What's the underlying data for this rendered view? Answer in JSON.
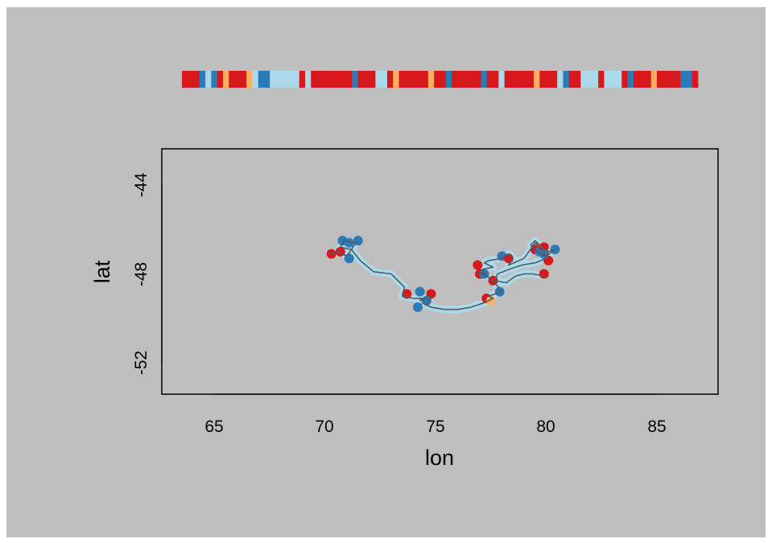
{
  "chart_data": {
    "type": "scatter",
    "title": "",
    "xlabel": "lon",
    "ylabel": "lat",
    "xlim": [
      62.6,
      87.8
    ],
    "ylim": [
      -53.3,
      -42.3
    ],
    "grid": false,
    "legend": "none",
    "x_ticks": [
      "65",
      "70",
      "75",
      "80",
      "85"
    ],
    "y_ticks": [
      "-44",
      "-48",
      "-52"
    ],
    "colors": {
      "background": "#bebebe",
      "panel": "#bebebe",
      "track_line": "#555a60",
      "state_light_blue": "#abd9e9",
      "state_blue": "#2c7bb6",
      "state_orange": "#fdae61",
      "state_red": "#d7191c"
    },
    "track": {
      "lon": [
        70.2,
        70.6,
        71.0,
        71.4,
        70.9,
        70.7,
        71.2,
        71.6,
        72.2,
        73.0,
        73.6,
        73.5,
        74.0,
        74.4,
        74.3,
        74.8,
        74.6,
        74.4,
        74.8,
        75.4,
        76.0,
        76.6,
        77.2,
        77.6,
        77.4,
        78.0,
        77.6,
        77.2,
        76.9,
        77.3,
        77.1,
        77.6,
        77.2,
        77.4,
        78.0,
        78.3,
        78.5,
        78.3,
        79.0,
        79.5,
        79.8,
        80.1,
        80.4,
        80.0,
        79.6,
        79.3,
        79.5,
        79.8,
        80.0,
        79.5,
        78.9,
        78.3,
        77.8,
        77.7,
        78.2,
        78.6,
        79.0,
        79.4,
        79.9
      ],
      "lat": [
        -47.1,
        -47.0,
        -47.2,
        -46.6,
        -46.5,
        -46.8,
        -46.9,
        -47.4,
        -47.9,
        -48.0,
        -48.6,
        -49.0,
        -49.1,
        -49.1,
        -49.2,
        -49.0,
        -49.4,
        -49.3,
        -49.5,
        -49.6,
        -49.6,
        -49.5,
        -49.3,
        -49.1,
        -49.0,
        -48.8,
        -48.3,
        -48.0,
        -47.9,
        -48.1,
        -47.8,
        -47.7,
        -47.5,
        -47.4,
        -47.3,
        -47.1,
        -47.3,
        -47.6,
        -47.3,
        -46.6,
        -46.8,
        -47.0,
        -46.9,
        -47.2,
        -47.0,
        -46.7,
        -46.5,
        -46.8,
        -47.3,
        -47.5,
        -47.6,
        -47.8,
        -48.0,
        -48.3,
        -48.4,
        -48.1,
        -48.0,
        -48.0,
        -48.1
      ]
    },
    "points": [
      {
        "lon": 70.3,
        "lat": -47.1,
        "state": "red"
      },
      {
        "lon": 70.7,
        "lat": -47.0,
        "state": "red"
      },
      {
        "lon": 70.8,
        "lat": -46.5,
        "state": "blue"
      },
      {
        "lon": 71.1,
        "lat": -46.6,
        "state": "blue"
      },
      {
        "lon": 71.5,
        "lat": -46.5,
        "state": "blue"
      },
      {
        "lon": 71.1,
        "lat": -47.3,
        "state": "blue"
      },
      {
        "lon": 73.7,
        "lat": -48.9,
        "state": "red"
      },
      {
        "lon": 74.3,
        "lat": -48.8,
        "state": "blue"
      },
      {
        "lon": 74.8,
        "lat": -48.9,
        "state": "red"
      },
      {
        "lon": 74.2,
        "lat": -49.5,
        "state": "blue"
      },
      {
        "lon": 74.6,
        "lat": -49.2,
        "state": "blue"
      },
      {
        "lon": 77.3,
        "lat": -49.1,
        "state": "red"
      },
      {
        "lon": 77.5,
        "lat": -49.2,
        "state": "orange"
      },
      {
        "lon": 77.9,
        "lat": -48.8,
        "state": "blue"
      },
      {
        "lon": 76.9,
        "lat": -47.6,
        "state": "red"
      },
      {
        "lon": 77.0,
        "lat": -48.0,
        "state": "red"
      },
      {
        "lon": 77.2,
        "lat": -48.0,
        "state": "blue"
      },
      {
        "lon": 77.6,
        "lat": -48.3,
        "state": "red"
      },
      {
        "lon": 78.0,
        "lat": -47.2,
        "state": "blue"
      },
      {
        "lon": 78.3,
        "lat": -47.3,
        "state": "red"
      },
      {
        "lon": 79.5,
        "lat": -46.9,
        "state": "red"
      },
      {
        "lon": 79.7,
        "lat": -47.0,
        "state": "blue"
      },
      {
        "lon": 79.9,
        "lat": -46.8,
        "state": "red"
      },
      {
        "lon": 80.1,
        "lat": -47.4,
        "state": "red"
      },
      {
        "lon": 80.4,
        "lat": -46.9,
        "state": "blue"
      },
      {
        "lon": 79.9,
        "lat": -47.1,
        "state": "blue"
      },
      {
        "lon": 79.9,
        "lat": -48.0,
        "state": "red"
      }
    ],
    "state_strip": [
      "red",
      "red",
      "red",
      "blue",
      "light_blue",
      "blue",
      "red",
      "orange",
      "red",
      "red",
      "red",
      "orange",
      "light_blue",
      "blue",
      "blue",
      "light_blue",
      "light_blue",
      "light_blue",
      "light_blue",
      "light_blue",
      "red",
      "light_blue",
      "red",
      "red",
      "red",
      "red",
      "red",
      "red",
      "red",
      "blue",
      "red",
      "red",
      "red",
      "light_blue",
      "light_blue",
      "red",
      "orange",
      "red",
      "red",
      "red",
      "red",
      "red",
      "orange",
      "red",
      "red",
      "blue",
      "red",
      "red",
      "red",
      "red",
      "red",
      "blue",
      "red",
      "red",
      "light_blue",
      "red",
      "red",
      "red",
      "red",
      "red",
      "orange",
      "red",
      "red",
      "red",
      "light_blue",
      "blue",
      "red",
      "red",
      "light_blue",
      "light_blue",
      "light_blue",
      "red",
      "light_blue",
      "light_blue",
      "light_blue",
      "red",
      "blue",
      "red",
      "red",
      "red",
      "orange",
      "red",
      "red",
      "red",
      "red",
      "blue",
      "blue",
      "red"
    ]
  }
}
